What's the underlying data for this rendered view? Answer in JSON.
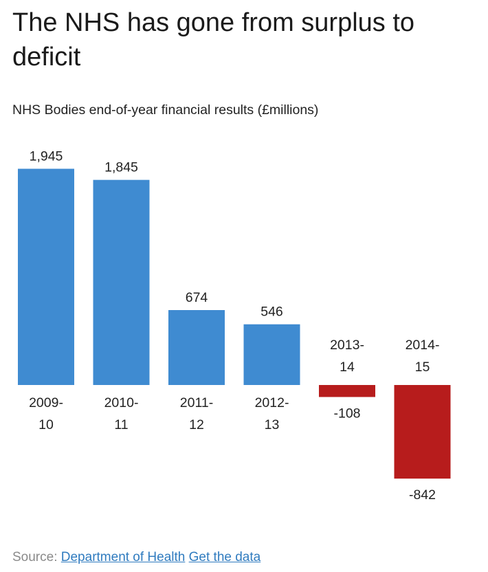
{
  "title": "The NHS has gone from surplus to deficit",
  "subtitle": "NHS Bodies end-of-year financial results (£millions)",
  "source": {
    "prefix": "Source:",
    "link1": "Department of Health",
    "link2": "Get the data"
  },
  "colors": {
    "positive": "#3f8bd1",
    "negative": "#b71c1c",
    "label": "#222222"
  },
  "chart_data": {
    "type": "bar",
    "title": "The NHS has gone from surplus to deficit",
    "subtitle": "NHS Bodies end-of-year financial results (£millions)",
    "categories": [
      [
        "2009-",
        "10"
      ],
      [
        "2010-",
        "11"
      ],
      [
        "2011-",
        "12"
      ],
      [
        "2012-",
        "13"
      ],
      [
        "2013-",
        "14"
      ],
      [
        "2014-",
        "15"
      ]
    ],
    "values": [
      1945,
      1845,
      674,
      546,
      -108,
      -842
    ],
    "value_labels": [
      "1,945",
      "1,845",
      "674",
      "546",
      "-108",
      "-842"
    ],
    "ylim": [
      -842,
      1945
    ],
    "grid": false,
    "legend": "none"
  }
}
